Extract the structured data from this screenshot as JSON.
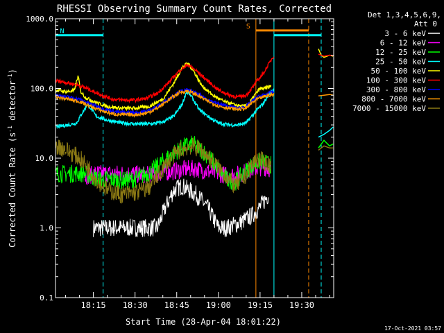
{
  "chart_data": {
    "type": "line",
    "title": "RHESSI Observing Summary Count Rates, Corrected",
    "xlabel": "Start Time (28-Apr-04 18:01:22)",
    "ylabel_main": "Corrected Count Rate (s",
    "ylabel_sup1": "-1",
    "ylabel_mid": " detector",
    "ylabel_sup2": "-1",
    "ylabel_end": ")",
    "y_scale": "log",
    "ylim": [
      0.1,
      1000
    ],
    "xlim_min": [
      1.3667,
      101.5
    ],
    "x_tick_labels": [
      "18:15",
      "18:30",
      "18:45",
      "19:00",
      "19:15",
      "19:30"
    ],
    "x_ticks_min": [
      15,
      30,
      45,
      60,
      75,
      90
    ],
    "y_ticks": [
      0.1,
      1,
      10,
      100,
      1000
    ],
    "y_tick_labels": [
      "0.1",
      "1.0",
      "10.0",
      "100.0",
      "1000.0"
    ],
    "legend": {
      "position": "top-right",
      "header_line1": "Det 1,3,4,5,6,9,",
      "header_line2": "Att 0",
      "entries": [
        {
          "label": "3 - 6 keV",
          "color": "#ffffff"
        },
        {
          "label": "6 - 12 keV",
          "color": "#ff00ff"
        },
        {
          "label": "12 - 25 keV",
          "color": "#00ff00"
        },
        {
          "label": "25 - 50 keV",
          "color": "#00ffff"
        },
        {
          "label": "50 - 100 keV",
          "color": "#ffff00"
        },
        {
          "label": "100 - 300 keV",
          "color": "#ff0000"
        },
        {
          "label": "300 - 800 keV",
          "color": "#0000ff"
        },
        {
          "label": "800 - 7000 keV",
          "color": "#ff9900"
        },
        {
          "label": "7000 - 15000 keV",
          "color": "#8c7a14"
        }
      ]
    },
    "flag_bars": [
      {
        "label": "N",
        "color": "#00ffff",
        "x_min": [
          1.5,
          18.5
        ],
        "y": 580
      },
      {
        "label": "S",
        "color": "#ff8800",
        "x_min": [
          73.5,
          92.5
        ],
        "y": 680
      },
      {
        "label": "",
        "color": "#00ffff",
        "x_min": [
          80,
          97
        ],
        "y": 580
      }
    ],
    "vlines": [
      {
        "x_min": 18.5,
        "color": "#00ffff",
        "style": "dashed"
      },
      {
        "x_min": 73.5,
        "color": "#ff8800",
        "style": "solid"
      },
      {
        "x_min": 80.0,
        "color": "#00ffff",
        "style": "solid"
      },
      {
        "x_min": 92.5,
        "color": "#ff8800",
        "style": "dashed"
      },
      {
        "x_min": 97.0,
        "color": "#00ffff",
        "style": "dashed"
      }
    ],
    "series": [
      {
        "name": "3 - 6 keV",
        "color": "#ffffff",
        "style": "noisy",
        "x": [
          15,
          25,
          38,
          41,
          44,
          47,
          52,
          56,
          60,
          63,
          68,
          72,
          75,
          78
        ],
        "y": [
          1.0,
          1.0,
          1.0,
          2.0,
          3.5,
          4.0,
          3.0,
          2.0,
          1.0,
          1.0,
          1.2,
          1.5,
          2.0,
          3.0
        ]
      },
      {
        "name": "6 - 12 keV",
        "color": "#ff00ff",
        "style": "noisy",
        "x": [
          12,
          16,
          20,
          24,
          28,
          32,
          36,
          40,
          44,
          48,
          52,
          56,
          60,
          64,
          68,
          72,
          76,
          79
        ],
        "y": [
          5.5,
          6.0,
          6.0,
          6.0,
          6.0,
          5.8,
          5.8,
          6.2,
          6.5,
          7.0,
          7.0,
          6.5,
          6.0,
          5.6,
          6.0,
          7.0,
          7.5,
          7.0
        ]
      },
      {
        "name": "12 - 25 keV",
        "color": "#00ff00",
        "style": "noisy",
        "x": [
          1.5,
          6,
          12,
          14,
          17,
          20,
          25,
          30,
          36,
          40,
          44,
          48,
          51,
          54,
          57,
          60,
          63,
          66,
          69,
          72,
          75,
          79
        ],
        "y": [
          6.0,
          6.0,
          6.0,
          5.5,
          5.0,
          5.0,
          4.8,
          5.0,
          6.5,
          9.0,
          12.0,
          15.0,
          16.0,
          13.0,
          10.0,
          7.0,
          5.0,
          4.5,
          6.0,
          8.0,
          9.0,
          8.0
        ]
      },
      {
        "name": "25 - 50 keV",
        "color": "#00ffff",
        "style": "line",
        "x": [
          1.5,
          6,
          9,
          11,
          13,
          16,
          20,
          25,
          30,
          36,
          40,
          44,
          47,
          48.5,
          50,
          53,
          57,
          60,
          64,
          67,
          70,
          72,
          74,
          76,
          78,
          80
        ],
        "y": [
          28,
          30,
          32,
          45,
          60,
          40,
          35,
          32,
          31,
          31,
          33,
          40,
          60,
          90,
          80,
          50,
          38,
          32,
          30,
          30,
          32,
          40,
          50,
          60,
          80,
          100
        ]
      },
      {
        "name": "50 - 100 keV",
        "color": "#ffff00",
        "style": "line",
        "x": [
          1.5,
          5,
          8,
          9.5,
          10.5,
          12,
          15,
          20,
          25,
          30,
          35,
          40,
          44,
          47,
          49,
          51,
          54,
          58,
          62,
          66,
          69,
          71,
          73,
          75,
          77,
          79
        ],
        "y": [
          95,
          90,
          92,
          150,
          90,
          75,
          65,
          55,
          52,
          52,
          55,
          70,
          120,
          200,
          230,
          180,
          110,
          80,
          65,
          58,
          55,
          60,
          80,
          100,
          100,
          110
        ]
      },
      {
        "name": "100 - 300 keV",
        "color": "#ff0000",
        "style": "line",
        "x": [
          1.5,
          6,
          10,
          14,
          18,
          22,
          26,
          30,
          34,
          38,
          42,
          46,
          49,
          52,
          56,
          60,
          64,
          67,
          70,
          72,
          74,
          76,
          78,
          80
        ],
        "y": [
          130,
          120,
          110,
          95,
          80,
          70,
          68,
          68,
          72,
          85,
          120,
          180,
          220,
          180,
          130,
          95,
          80,
          75,
          80,
          100,
          130,
          160,
          220,
          300
        ]
      },
      {
        "name": "300 - 800 keV",
        "color": "#0000ff",
        "style": "line",
        "x": [
          1.5,
          6,
          10,
          14,
          18,
          22,
          26,
          30,
          34,
          38,
          42,
          46,
          49,
          52,
          56,
          60,
          64,
          67,
          70,
          72,
          74,
          76,
          78,
          80
        ],
        "y": [
          80,
          75,
          70,
          60,
          52,
          47,
          45,
          45,
          47,
          55,
          70,
          90,
          95,
          85,
          70,
          60,
          55,
          52,
          55,
          65,
          75,
          80,
          85,
          90
        ]
      },
      {
        "name": "800 - 7000 keV",
        "color": "#ff9900",
        "style": "line",
        "x": [
          1.5,
          6,
          10,
          14,
          18,
          22,
          26,
          30,
          34,
          38,
          42,
          46,
          49,
          52,
          56,
          60,
          64,
          67,
          70,
          72,
          74,
          76,
          78,
          80
        ],
        "y": [
          75,
          70,
          65,
          55,
          48,
          43,
          42,
          42,
          44,
          52,
          68,
          88,
          92,
          82,
          66,
          56,
          52,
          50,
          52,
          62,
          70,
          75,
          80,
          82
        ]
      },
      {
        "name": "7000 - 15000 keV",
        "color": "#8c7a14",
        "style": "noisy",
        "x": [
          1.5,
          4,
          7,
          10,
          13,
          16,
          20,
          25,
          30,
          35,
          38,
          42,
          46,
          50,
          54,
          58,
          62,
          66,
          69,
          72,
          74,
          76,
          79
        ],
        "y": [
          15,
          14,
          12,
          10,
          7.5,
          5.0,
          3.5,
          3.0,
          3.2,
          3.8,
          5.5,
          9.0,
          13.0,
          15.0,
          13.0,
          9.0,
          6.0,
          4.0,
          5.0,
          8.0,
          10.0,
          9.0,
          8.0
        ]
      }
    ],
    "post_gap_series": [
      {
        "color": "#00ffff",
        "x": [
          96,
          98,
          100,
          101.3
        ],
        "y": [
          20,
          22,
          25,
          28
        ]
      },
      {
        "color": "#ffff00",
        "x": [
          96,
          97,
          98,
          100,
          101.3
        ],
        "y": [
          370,
          300,
          280,
          300,
          290
        ]
      },
      {
        "color": "#ff0000",
        "x": [
          96,
          98,
          100,
          101.3
        ],
        "y": [
          310,
          290,
          300,
          295
        ]
      },
      {
        "color": "#ff9900",
        "x": [
          96,
          98,
          100,
          101.3
        ],
        "y": [
          78,
          80,
          82,
          80
        ]
      },
      {
        "color": "#00ff00",
        "x": [
          96,
          98,
          100,
          101.3
        ],
        "y": [
          14,
          18,
          15,
          16
        ]
      },
      {
        "color": "#8c7a14",
        "x": [
          96,
          98,
          100,
          101.3
        ],
        "y": [
          13,
          15,
          14,
          14
        ]
      }
    ]
  },
  "timestamp": "17-Oct-2021 03:57"
}
